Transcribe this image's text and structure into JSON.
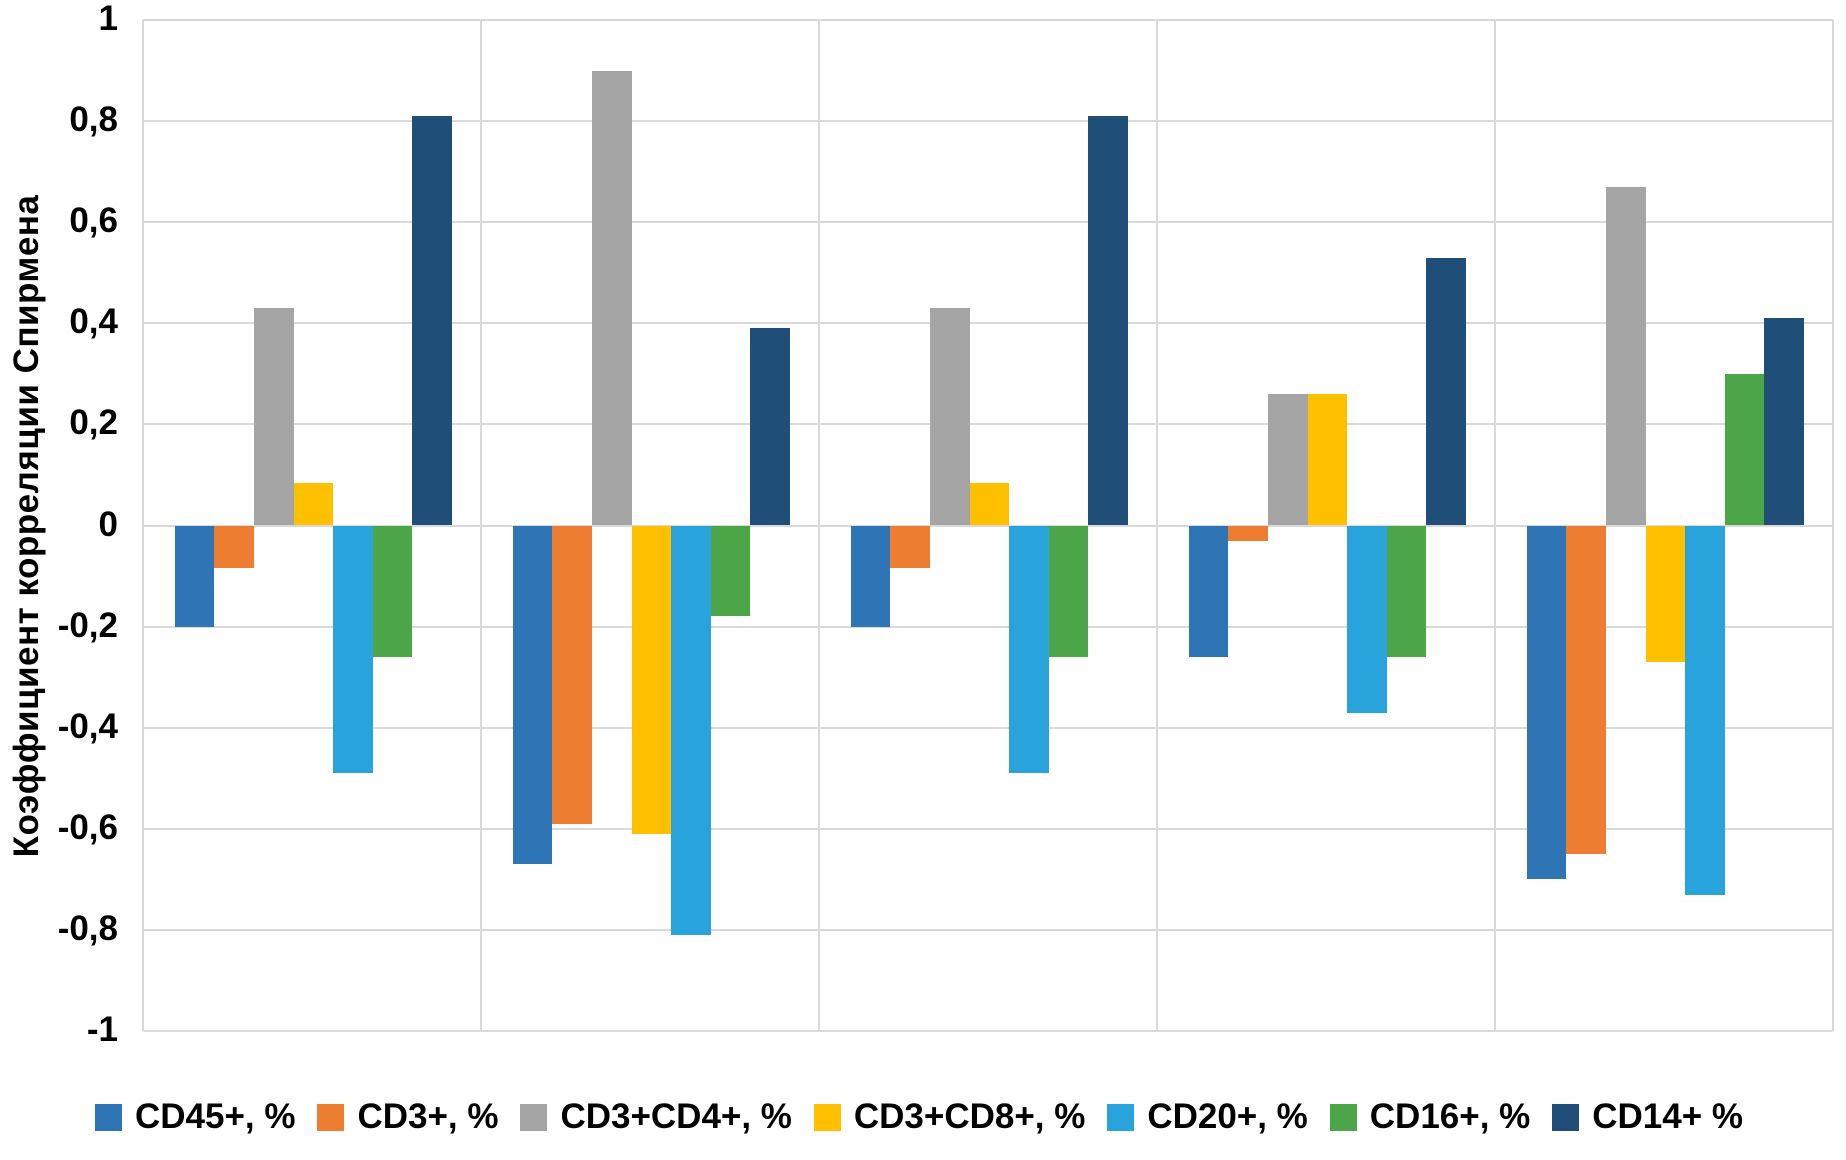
{
  "chart_data": {
    "type": "bar",
    "title": "",
    "xlabel": "",
    "ylabel": "Коэффициент корреляции Спирмена",
    "ylim": [
      -1,
      1
    ],
    "ytick_values": [
      1,
      0.8,
      0.6,
      0.4,
      0.2,
      0,
      -0.2,
      -0.4,
      -0.6,
      -0.8,
      -1
    ],
    "ytick_labels": [
      "1",
      "0,8",
      "0,6",
      "0,4",
      "0,2",
      "0",
      "-0,2",
      "-0,4",
      "-0,6",
      "-0,8",
      "-1"
    ],
    "grid": true,
    "gridline_color": "#d9d9d9",
    "legend_position": "bottom",
    "categories": [
      "",
      "",
      "",
      "",
      ""
    ],
    "series": [
      {
        "name": "CD45+, %",
        "color": "#2E75B6",
        "values": [
          -0.2,
          -0.67,
          -0.2,
          -0.26,
          -0.7
        ]
      },
      {
        "name": "CD3+, %",
        "color": "#ED7D31",
        "values": [
          -0.085,
          -0.59,
          -0.085,
          -0.03,
          -0.65
        ]
      },
      {
        "name": "CD3+CD4+, %",
        "color": "#A5A5A5",
        "values": [
          0.43,
          0.9,
          0.43,
          0.26,
          0.67
        ]
      },
      {
        "name": "CD3+CD8+, %",
        "color": "#FFC000",
        "values": [
          0.085,
          -0.61,
          0.085,
          0.26,
          -0.27
        ]
      },
      {
        "name": "CD20+, %",
        "color": "#29A3DC",
        "values": [
          -0.49,
          -0.81,
          -0.49,
          -0.37,
          -0.73
        ]
      },
      {
        "name": "CD16+, %",
        "color": "#4CA546",
        "values": [
          -0.26,
          -0.18,
          -0.26,
          -0.26,
          0.3
        ]
      },
      {
        "name": "CD14+ %",
        "color": "#1F4E79",
        "values": [
          0.81,
          0.39,
          0.81,
          0.53,
          0.41
        ]
      }
    ]
  }
}
